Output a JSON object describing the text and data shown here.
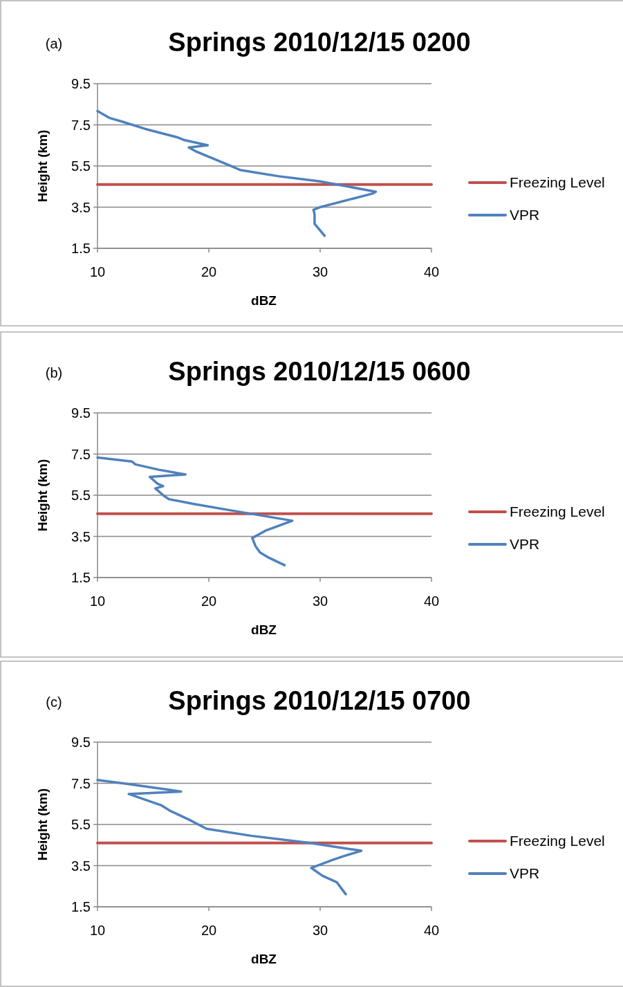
{
  "chart_data": [
    {
      "type": "line",
      "title": "Springs 2010/12/15 0200",
      "annotations": [
        "(a)"
      ],
      "xlabel": "dBZ",
      "ylabel": "Height (km)",
      "xlim": [
        10,
        40
      ],
      "xticks": [
        10,
        20,
        30,
        40
      ],
      "ylim": [
        1.5,
        9.5
      ],
      "yticks": [
        1.5,
        3.5,
        5.5,
        7.5,
        9.5
      ],
      "grid": "y",
      "legend": "right",
      "marker": "none",
      "line_style": "solid",
      "series": [
        {
          "name": "Freezing Level",
          "color": "#c0504d",
          "x": [
            10,
            40
          ],
          "values": [
            4.6,
            4.6
          ]
        },
        {
          "name": "VPR",
          "color": "#4f81bd",
          "x": [
            10,
            11.1,
            12.2,
            14.3,
            17.2,
            17.8,
            19.9,
            18.2,
            18.8,
            21.9,
            22.8,
            26.3,
            30.0,
            35.0,
            34.7,
            30.0,
            29.4,
            29.5,
            29.5,
            29.7,
            30.4
          ],
          "values": [
            8.17,
            7.83,
            7.66,
            7.3,
            6.89,
            6.76,
            6.51,
            6.4,
            6.22,
            5.52,
            5.31,
            5.0,
            4.75,
            4.25,
            4.16,
            3.5,
            3.37,
            3.15,
            2.69,
            2.56,
            2.11
          ]
        }
      ]
    },
    {
      "type": "line",
      "title": "Springs 2010/12/15 0600",
      "annotations": [
        "(b)"
      ],
      "xlabel": "dBZ",
      "ylabel": "Height (km)",
      "xlim": [
        10,
        40
      ],
      "xticks": [
        10,
        20,
        30,
        40
      ],
      "ylim": [
        1.5,
        9.5
      ],
      "yticks": [
        1.5,
        3.5,
        5.5,
        7.5,
        9.5
      ],
      "grid": "y",
      "legend": "right",
      "marker": "none",
      "line_style": "solid",
      "series": [
        {
          "name": "Freezing Level",
          "color": "#c0504d",
          "x": [
            10,
            40
          ],
          "values": [
            4.6,
            4.6
          ]
        },
        {
          "name": "VPR",
          "color": "#4f81bd",
          "x": [
            10,
            13.1,
            13.4,
            15.5,
            17.9,
            14.7,
            15.4,
            15.9,
            15.2,
            15.9,
            16.4,
            18.6,
            21.7,
            27.5,
            25.1,
            23.9,
            24.2,
            24.6,
            25.4,
            26.8
          ],
          "values": [
            7.33,
            7.14,
            7.0,
            6.74,
            6.51,
            6.39,
            6.06,
            5.94,
            5.83,
            5.5,
            5.31,
            5.08,
            4.79,
            4.26,
            3.78,
            3.42,
            3.02,
            2.72,
            2.46,
            2.1
          ]
        }
      ]
    },
    {
      "type": "line",
      "title": "Springs 2010/12/15 0700",
      "annotations": [
        "(c)"
      ],
      "xlabel": "dBZ",
      "ylabel": "Height (km)",
      "xlim": [
        10,
        40
      ],
      "xticks": [
        10,
        20,
        30,
        40
      ],
      "ylim": [
        1.5,
        9.5
      ],
      "yticks": [
        1.5,
        3.5,
        5.5,
        7.5,
        9.5
      ],
      "grid": "y",
      "legend": "right",
      "marker": "none",
      "line_style": "solid",
      "series": [
        {
          "name": "Freezing Level",
          "color": "#c0504d",
          "x": [
            10,
            40
          ],
          "values": [
            4.6,
            4.6
          ]
        },
        {
          "name": "VPR",
          "color": "#4f81bd",
          "x": [
            10,
            12.4,
            17.5,
            12.8,
            15.7,
            16.5,
            18.2,
            19.8,
            23.8,
            29.0,
            33.7,
            32.1,
            31.1,
            29.2,
            30.2,
            31.5,
            32.3
          ],
          "values": [
            7.66,
            7.49,
            7.1,
            6.98,
            6.44,
            6.17,
            5.74,
            5.29,
            4.95,
            4.61,
            4.22,
            3.96,
            3.77,
            3.39,
            3.01,
            2.69,
            2.11
          ]
        }
      ]
    }
  ]
}
